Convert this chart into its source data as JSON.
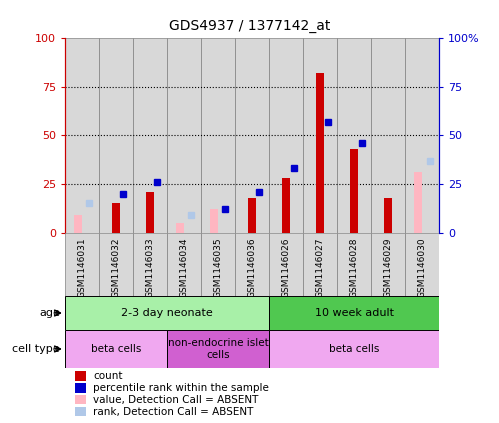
{
  "title": "GDS4937 / 1377142_at",
  "samples": [
    "GSM1146031",
    "GSM1146032",
    "GSM1146033",
    "GSM1146034",
    "GSM1146035",
    "GSM1146036",
    "GSM1146026",
    "GSM1146027",
    "GSM1146028",
    "GSM1146029",
    "GSM1146030"
  ],
  "red_values": [
    null,
    15,
    21,
    null,
    null,
    18,
    28,
    82,
    43,
    18,
    null
  ],
  "blue_values": [
    null,
    20,
    26,
    null,
    12,
    21,
    33,
    57,
    46,
    null,
    null
  ],
  "pink_values": [
    9,
    null,
    null,
    5,
    12,
    null,
    null,
    null,
    null,
    null,
    31
  ],
  "lightblue_values": [
    15,
    null,
    null,
    9,
    null,
    null,
    null,
    null,
    null,
    null,
    37
  ],
  "ylim": [
    0,
    100
  ],
  "yticks": [
    0,
    25,
    50,
    75,
    100
  ],
  "age_groups": [
    {
      "label": "2-3 day neonate",
      "start": 0,
      "end": 6,
      "color": "#a8f0a8"
    },
    {
      "label": "10 week adult",
      "start": 6,
      "end": 11,
      "color": "#50c850"
    }
  ],
  "cell_groups": [
    {
      "label": "beta cells",
      "start": 0,
      "end": 3,
      "color": "#f0a8f0"
    },
    {
      "label": "non-endocrine islet\ncells",
      "start": 3,
      "end": 6,
      "color": "#d060d0"
    },
    {
      "label": "beta cells",
      "start": 6,
      "end": 11,
      "color": "#f0a8f0"
    }
  ],
  "legend_items": [
    {
      "label": "count",
      "color": "#cc0000"
    },
    {
      "label": "percentile rank within the sample",
      "color": "#0000cc"
    },
    {
      "label": "value, Detection Call = ABSENT",
      "color": "#ffb6c1"
    },
    {
      "label": "rank, Detection Call = ABSENT",
      "color": "#b0c8e8"
    }
  ],
  "red_color": "#cc0000",
  "blue_color": "#0000cc",
  "pink_color": "#ffb6c1",
  "lightblue_color": "#b0c8e8",
  "left_axis_color": "#cc0000",
  "right_axis_color": "#0000cc",
  "col_bg": "#d8d8d8"
}
